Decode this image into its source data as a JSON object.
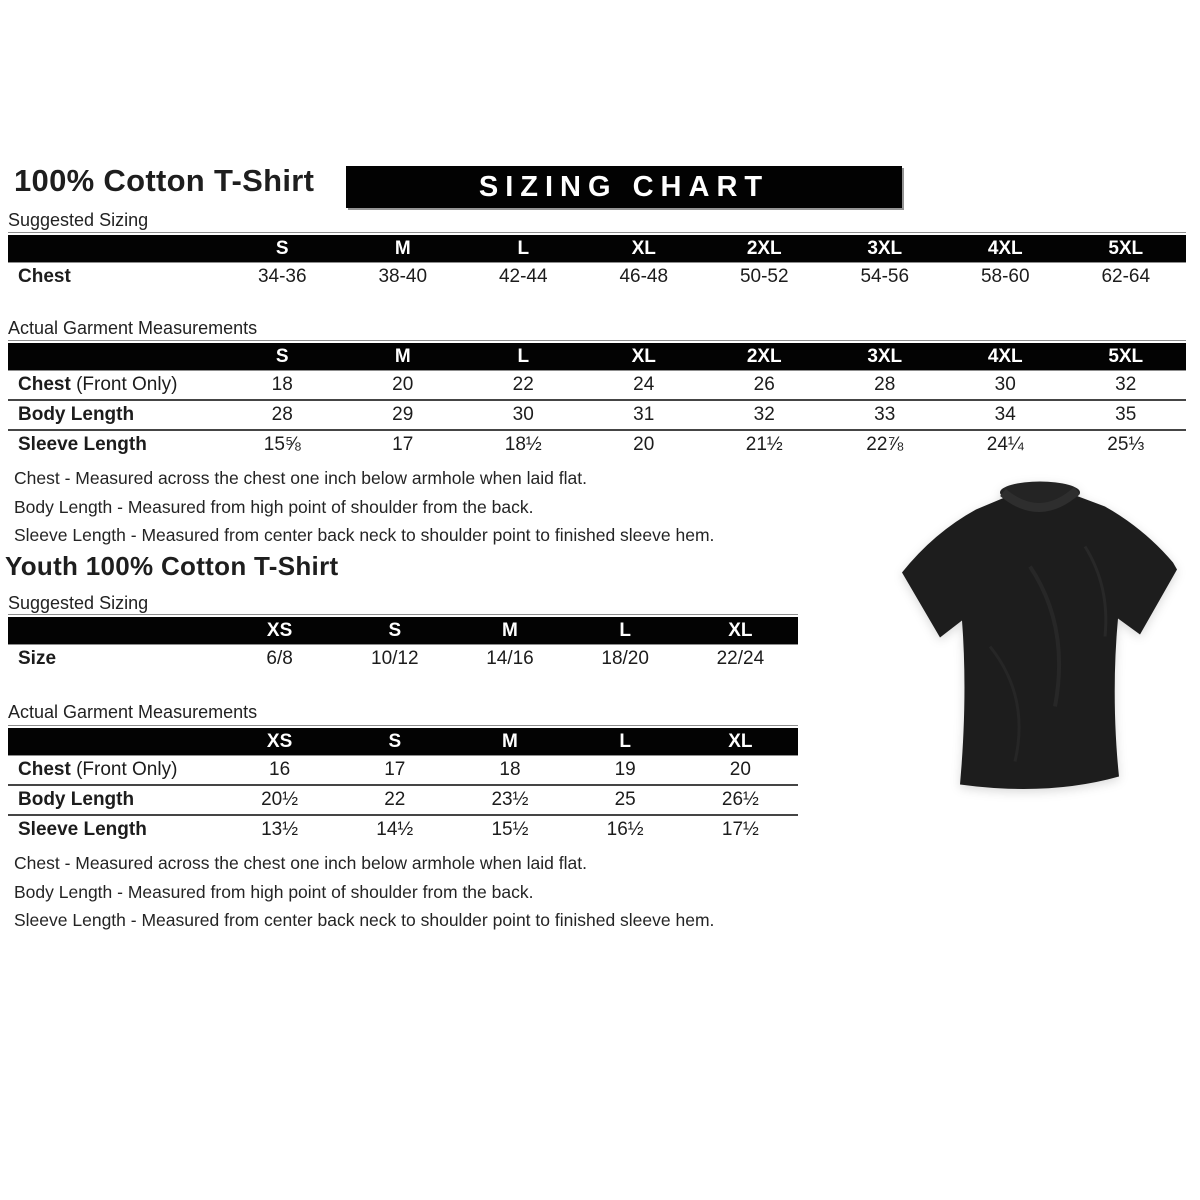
{
  "title": "100% Cotton T-Shirt",
  "banner": "SIZING CHART",
  "adult": {
    "suggested_label": "Suggested Sizing",
    "actual_label": "Actual Garment Measurements",
    "suggested": {
      "columns": [
        "S",
        "M",
        "L",
        "XL",
        "2XL",
        "3XL",
        "4XL",
        "5XL"
      ],
      "rows": [
        {
          "label": "Chest",
          "suffix": "",
          "values": [
            "34-36",
            "38-40",
            "42-44",
            "46-48",
            "50-52",
            "54-56",
            "58-60",
            "62-64"
          ]
        }
      ]
    },
    "actual": {
      "columns": [
        "S",
        "M",
        "L",
        "XL",
        "2XL",
        "3XL",
        "4XL",
        "5XL"
      ],
      "rows": [
        {
          "label": "Chest",
          "suffix": " (Front Only)",
          "values": [
            "18",
            "20",
            "22",
            "24",
            "26",
            "28",
            "30",
            "32"
          ]
        },
        {
          "label": "Body Length",
          "suffix": "",
          "values": [
            "28",
            "29",
            "30",
            "31",
            "32",
            "33",
            "34",
            "35"
          ]
        },
        {
          "label": "Sleeve Length",
          "suffix": "",
          "values": [
            "15⅝",
            "17",
            "18½",
            "20",
            "21½",
            "22⅞",
            "24¼",
            "25⅓"
          ]
        }
      ]
    },
    "notes": [
      "Chest - Measured across the chest one inch below armhole when laid flat.",
      "Body Length - Measured from high point of shoulder from the back.",
      "Sleeve Length - Measured from center back neck to shoulder point to finished sleeve hem."
    ]
  },
  "youth": {
    "title": "Youth 100% Cotton T-Shirt",
    "suggested_label": "Suggested Sizing",
    "actual_label": "Actual Garment Measurements",
    "suggested": {
      "columns": [
        "XS",
        "S",
        "M",
        "L",
        "XL"
      ],
      "rows": [
        {
          "label": "Size",
          "suffix": "",
          "values": [
            "6/8",
            "10/12",
            "14/16",
            "18/20",
            "22/24"
          ]
        }
      ]
    },
    "actual": {
      "columns": [
        "XS",
        "S",
        "M",
        "L",
        "XL"
      ],
      "rows": [
        {
          "label": "Chest",
          "suffix": " (Front Only)",
          "values": [
            "16",
            "17",
            "18",
            "19",
            "20"
          ]
        },
        {
          "label": "Body Length",
          "suffix": "",
          "values": [
            "20½",
            "22",
            "23½",
            "25",
            "26½"
          ]
        },
        {
          "label": "Sleeve Length",
          "suffix": "",
          "values": [
            "13½",
            "14½",
            "15½",
            "16½",
            "17½"
          ]
        }
      ]
    },
    "notes": [
      "Chest - Measured across the chest one inch below armhole when laid flat.",
      "Body Length - Measured from high point of shoulder from the back.",
      "Sleeve Length - Measured from center back neck to shoulder point to finished sleeve hem."
    ]
  },
  "tshirt": {
    "color": "#1d1d1d",
    "collar_color": "#2e2e2e"
  }
}
